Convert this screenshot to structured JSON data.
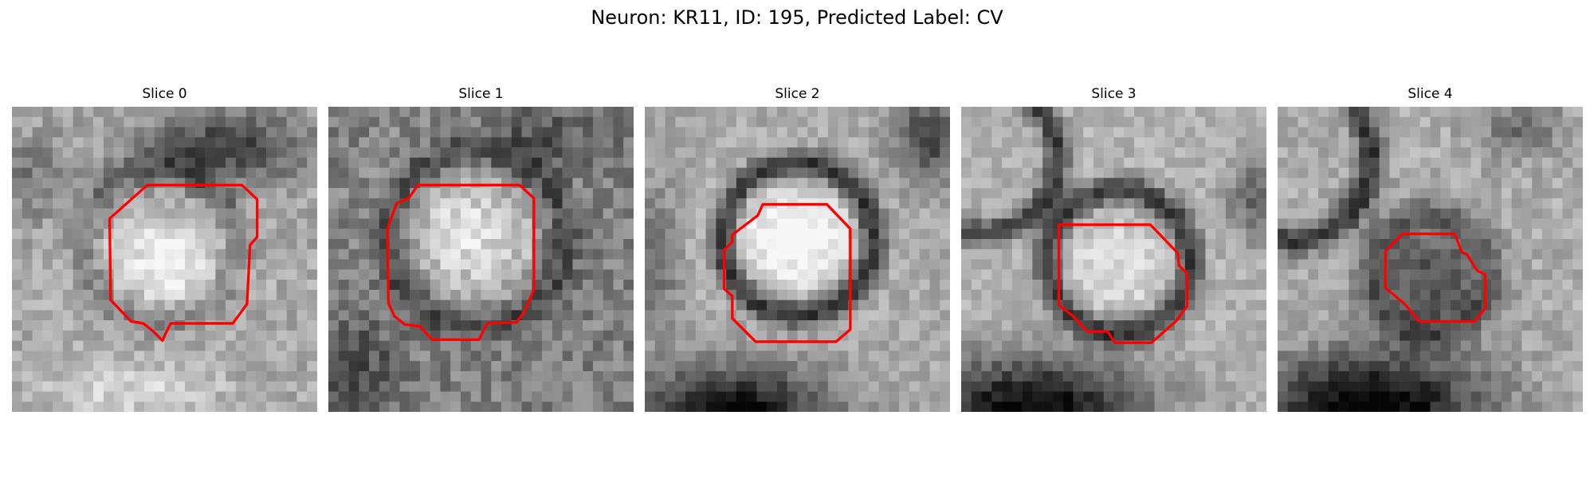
{
  "figure": {
    "title": "Neuron: KR11, ID: 195, Predicted Label: CV"
  },
  "panels": [
    {
      "title": "Slice 0"
    },
    {
      "title": "Slice 1"
    },
    {
      "title": "Slice 2"
    },
    {
      "title": "Slice 3"
    },
    {
      "title": "Slice 4"
    }
  ],
  "colors": {
    "contour": "#ff0000",
    "background": "#ffffff"
  }
}
